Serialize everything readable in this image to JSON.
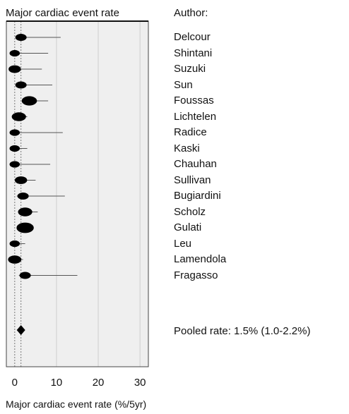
{
  "chart_data": {
    "type": "forest",
    "title": "Major cardiac event rate",
    "author_header": "Author:",
    "xlabel": "Major cardiac event rate (%/5yr)",
    "xlim": [
      -2,
      32
    ],
    "xticks": [
      0,
      10,
      20,
      30
    ],
    "xtick_labels": [
      "0",
      "10",
      "20",
      "30"
    ],
    "grid": "vertical lines at 10, 20, 30",
    "reference_line": 0,
    "pooled_reference_line": 1.5,
    "studies": [
      {
        "author": "Delcour",
        "estimate": 1.5,
        "ci_low": 0.5,
        "ci_high": 11.0,
        "weight": 1.0
      },
      {
        "author": "Shintani",
        "estimate": 0.0,
        "ci_low": 0.0,
        "ci_high": 8.0,
        "weight": 0.9
      },
      {
        "author": "Suzuki",
        "estimate": 0.0,
        "ci_low": 0.0,
        "ci_high": 6.5,
        "weight": 1.1
      },
      {
        "author": "Sun",
        "estimate": 1.5,
        "ci_low": 0.3,
        "ci_high": 9.0,
        "weight": 1.0
      },
      {
        "author": "Foussas",
        "estimate": 3.5,
        "ci_low": 2.0,
        "ci_high": 8.0,
        "weight": 1.4
      },
      {
        "author": "Lichtelen",
        "estimate": 1.0,
        "ci_low": 0.0,
        "ci_high": 3.0,
        "weight": 1.3
      },
      {
        "author": "Radice",
        "estimate": 0.0,
        "ci_low": 0.0,
        "ci_high": 11.5,
        "weight": 0.9
      },
      {
        "author": "Kaski",
        "estimate": 0.0,
        "ci_low": 0.0,
        "ci_high": 3.0,
        "weight": 0.9
      },
      {
        "author": "Chauhan",
        "estimate": 0.0,
        "ci_low": 0.0,
        "ci_high": 8.5,
        "weight": 0.9
      },
      {
        "author": "Sullivan",
        "estimate": 1.5,
        "ci_low": 0.3,
        "ci_high": 5.0,
        "weight": 1.1
      },
      {
        "author": "Bugiardini",
        "estimate": 2.0,
        "ci_low": 0.5,
        "ci_high": 12.0,
        "weight": 1.0
      },
      {
        "author": "Scholz",
        "estimate": 2.5,
        "ci_low": 1.0,
        "ci_high": 5.5,
        "weight": 1.3
      },
      {
        "author": "Gulati",
        "estimate": 2.5,
        "ci_low": 1.5,
        "ci_high": 4.5,
        "weight": 1.6
      },
      {
        "author": "Leu",
        "estimate": 0.0,
        "ci_low": 0.0,
        "ci_high": 2.5,
        "weight": 0.9
      },
      {
        "author": "Lamendola",
        "estimate": 0.0,
        "ci_low": 0.0,
        "ci_high": 2.0,
        "weight": 1.2
      },
      {
        "author": "Fragasso",
        "estimate": 2.5,
        "ci_low": 1.0,
        "ci_high": 15.0,
        "weight": 1.0
      }
    ],
    "pooled": {
      "estimate": 1.5,
      "ci_low": 1.0,
      "ci_high": 2.2,
      "label": "Pooled rate: 1.5% (1.0-2.2%)"
    }
  }
}
